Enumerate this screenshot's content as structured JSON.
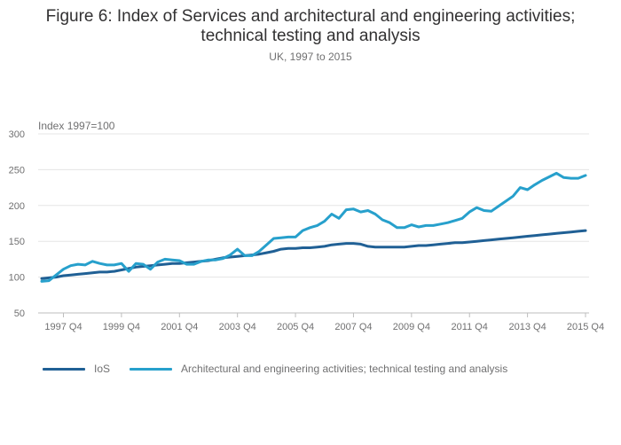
{
  "title_line1": "Figure 6: Index of Services and architectural and engineering activities;",
  "title_line2": "technical testing and analysis",
  "subtitle": "UK, 1997 to 2015",
  "colors": {
    "ios": "#206095",
    "arch": "#27a0cc",
    "grid": "#e5e5e5",
    "axis": "#bdbdbd",
    "text": "#707071"
  },
  "chart_data": {
    "type": "line",
    "ylabel": "Index 1997=100",
    "ylim": [
      50,
      300
    ],
    "yticks": [
      50,
      100,
      150,
      200,
      250,
      300
    ],
    "xlabel": "",
    "x_tick_labels": [
      "1997 Q4",
      "1999 Q4",
      "2001 Q4",
      "2003 Q4",
      "2005 Q4",
      "2007 Q4",
      "2009 Q4",
      "2011 Q4",
      "2013 Q4",
      "2015 Q4"
    ],
    "x": [
      "1997 Q1",
      "1997 Q2",
      "1997 Q3",
      "1997 Q4",
      "1998 Q1",
      "1998 Q2",
      "1998 Q3",
      "1998 Q4",
      "1999 Q1",
      "1999 Q2",
      "1999 Q3",
      "1999 Q4",
      "2000 Q1",
      "2000 Q2",
      "2000 Q3",
      "2000 Q4",
      "2001 Q1",
      "2001 Q2",
      "2001 Q3",
      "2001 Q4",
      "2002 Q1",
      "2002 Q2",
      "2002 Q3",
      "2002 Q4",
      "2003 Q1",
      "2003 Q2",
      "2003 Q3",
      "2003 Q4",
      "2004 Q1",
      "2004 Q2",
      "2004 Q3",
      "2004 Q4",
      "2005 Q1",
      "2005 Q2",
      "2005 Q3",
      "2005 Q4",
      "2006 Q1",
      "2006 Q2",
      "2006 Q3",
      "2006 Q4",
      "2007 Q1",
      "2007 Q2",
      "2007 Q3",
      "2007 Q4",
      "2008 Q1",
      "2008 Q2",
      "2008 Q3",
      "2008 Q4",
      "2009 Q1",
      "2009 Q2",
      "2009 Q3",
      "2009 Q4",
      "2010 Q1",
      "2010 Q2",
      "2010 Q3",
      "2010 Q4",
      "2011 Q1",
      "2011 Q2",
      "2011 Q3",
      "2011 Q4",
      "2012 Q1",
      "2012 Q2",
      "2012 Q3",
      "2012 Q4",
      "2013 Q1",
      "2013 Q2",
      "2013 Q3",
      "2013 Q4",
      "2014 Q1",
      "2014 Q2",
      "2014 Q3",
      "2014 Q4",
      "2015 Q1",
      "2015 Q2",
      "2015 Q3",
      "2015 Q4"
    ],
    "series": [
      {
        "name": "IoS",
        "values": [
          98,
          99,
          100,
          102,
          103,
          104,
          105,
          106,
          107,
          107,
          108,
          110,
          112,
          114,
          115,
          116,
          117,
          118,
          119,
          119,
          120,
          121,
          122,
          123,
          125,
          127,
          128,
          129,
          130,
          131,
          132,
          134,
          136,
          139,
          140,
          140,
          141,
          141,
          142,
          143,
          145,
          146,
          147,
          147,
          146,
          143,
          142,
          142,
          142,
          142,
          142,
          143,
          144,
          144,
          145,
          146,
          147,
          148,
          148,
          149,
          150,
          151,
          152,
          153,
          154,
          155,
          156,
          157,
          158,
          159,
          160,
          161,
          162,
          163,
          164,
          165
        ]
      },
      {
        "name": "Architectural and engineering activities; technical testing and analysis",
        "values": [
          94,
          95,
          103,
          111,
          116,
          118,
          117,
          122,
          119,
          117,
          117,
          119,
          108,
          119,
          118,
          111,
          121,
          125,
          124,
          123,
          118,
          118,
          122,
          124,
          124,
          126,
          131,
          139,
          130,
          130,
          136,
          145,
          154,
          155,
          156,
          156,
          165,
          169,
          172,
          178,
          188,
          182,
          194,
          195,
          191,
          193,
          188,
          180,
          176,
          169,
          169,
          173,
          170,
          172,
          172,
          174,
          176,
          179,
          182,
          191,
          197,
          193,
          192,
          199,
          206,
          213,
          225,
          222,
          229,
          235,
          240,
          245,
          239,
          238,
          238,
          242
        ]
      }
    ]
  }
}
